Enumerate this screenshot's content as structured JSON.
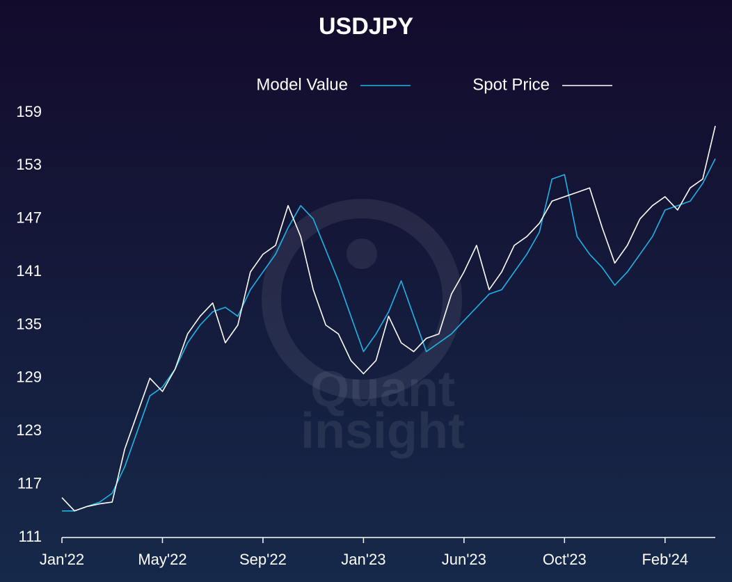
{
  "chart_data": {
    "type": "line",
    "title": "USDJPY",
    "watermark": [
      "Quant",
      "insight"
    ],
    "categories": [
      "Jan'22",
      null,
      null,
      null,
      null,
      null,
      null,
      null,
      "May'22",
      null,
      null,
      null,
      null,
      null,
      null,
      null,
      "Sep'22",
      null,
      null,
      null,
      null,
      null,
      null,
      null,
      "Jan'23",
      null,
      null,
      null,
      null,
      null,
      null,
      null,
      "Jun'23",
      null,
      null,
      null,
      null,
      null,
      null,
      null,
      "Oct'23",
      null,
      null,
      null,
      null,
      null,
      null,
      null,
      "Feb'24",
      null,
      null,
      null,
      null
    ],
    "series": [
      {
        "name": "Model Value",
        "color": "#1fb4e6",
        "values": [
          114,
          114,
          114.5,
          115,
          116,
          119,
          123,
          127,
          128,
          130,
          133,
          135,
          136.5,
          137,
          136,
          139,
          141,
          143,
          146,
          148.5,
          147,
          143.5,
          140,
          136,
          132,
          134,
          136.5,
          140,
          136,
          132,
          133,
          134,
          135.5,
          137,
          138.5,
          139,
          141,
          143,
          145.5,
          151.5,
          152,
          145,
          143,
          141.5,
          139.5,
          141,
          143,
          145,
          148,
          148.5,
          149,
          151,
          153.8
        ]
      },
      {
        "name": "Spot Price",
        "color": "#ffffff",
        "values": [
          115.5,
          114,
          114.5,
          114.8,
          115,
          121,
          125,
          129,
          127.5,
          130,
          134,
          136,
          137.5,
          133,
          135,
          141,
          143,
          144,
          148.5,
          145,
          139,
          135,
          134,
          131,
          129.5,
          131,
          136,
          133,
          132,
          133.5,
          134,
          138.5,
          141,
          144,
          139,
          141,
          144,
          145,
          146.5,
          149,
          149.5,
          150,
          150.5,
          146,
          142,
          144,
          147,
          148.5,
          149.5,
          148,
          150.5,
          151.5,
          157.5
        ]
      }
    ],
    "ylim": [
      111,
      159
    ],
    "yticks": [
      111,
      117,
      123,
      129,
      135,
      141,
      147,
      153,
      159
    ]
  }
}
